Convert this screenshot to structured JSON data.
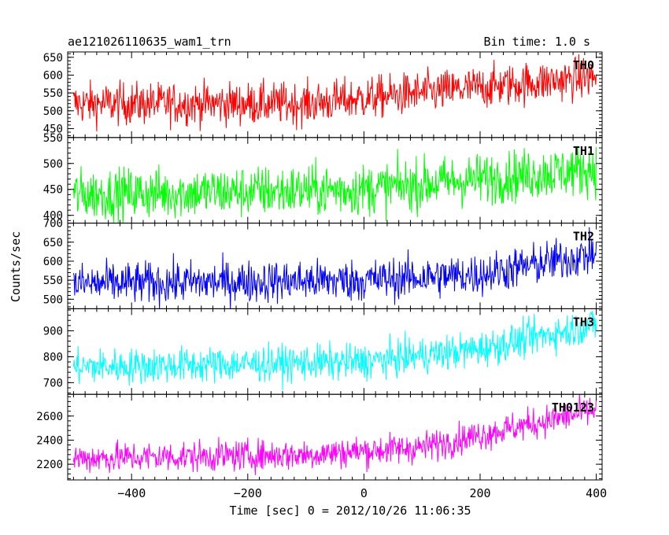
{
  "header": {
    "title": "ae121026110635_wam1_trn",
    "bin_time": "Bin time: 1.0 s"
  },
  "chart_data": {
    "type": "line",
    "xlabel": "Time [sec] 0 = 2012/10/26 11:06:35",
    "ylabel": "Counts/sec",
    "xlim": [
      -510,
      410
    ],
    "x_ticks": [
      -400,
      -200,
      0,
      200,
      400
    ],
    "x_tick_labels": [
      "−400",
      "−200",
      "0",
      "200",
      "400"
    ],
    "x_range": [
      -500,
      400
    ],
    "grid": false,
    "panels": [
      {
        "name": "TH0",
        "color": "#ff0000",
        "ylim": [
          425,
          665
        ],
        "y_ticks": [
          450,
          500,
          550,
          600,
          650
        ],
        "trend": [
          [
            -500,
            520
          ],
          [
            -100,
            520
          ],
          [
            100,
            550
          ],
          [
            400,
            595
          ]
        ],
        "noise": 30
      },
      {
        "name": "TH1",
        "color": "#00ff00",
        "ylim": [
          385,
          550
        ],
        "y_ticks": [
          400,
          450,
          500,
          550
        ],
        "trend": [
          [
            -500,
            440
          ],
          [
            0,
            450
          ],
          [
            400,
            490
          ]
        ],
        "noise": 25
      },
      {
        "name": "TH2",
        "color": "#0000ff",
        "ylim": [
          475,
          700
        ],
        "y_ticks": [
          500,
          550,
          600,
          650,
          700
        ],
        "trend": [
          [
            -500,
            540
          ],
          [
            0,
            550
          ],
          [
            200,
            565
          ],
          [
            400,
            620
          ]
        ],
        "noise": 28
      },
      {
        "name": "TH3",
        "color": "#00ffff",
        "ylim": [
          655,
          985
        ],
        "y_ticks": [
          700,
          800,
          900
        ],
        "trend": [
          [
            -500,
            760
          ],
          [
            0,
            780
          ],
          [
            200,
            830
          ],
          [
            400,
            925
          ]
        ],
        "noise": 35
      },
      {
        "name": "TH0123",
        "color": "#ff00ff",
        "ylim": [
          2070,
          2780
        ],
        "y_ticks": [
          2200,
          2400,
          2600
        ],
        "trend": [
          [
            -500,
            2250
          ],
          [
            -100,
            2280
          ],
          [
            100,
            2340
          ],
          [
            400,
            2650
          ]
        ],
        "noise": 65
      }
    ]
  }
}
